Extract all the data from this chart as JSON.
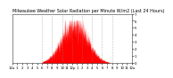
{
  "title": "Milwaukee Weather Solar Radiation per Minute W/m2 (Last 24 Hours)",
  "background_color": "#ffffff",
  "plot_bg_color": "#ffffff",
  "fill_color": "#ff0000",
  "line_color": "#ff0000",
  "grid_color": "#888888",
  "ylim": [
    0,
    700
  ],
  "yticks": [
    0,
    100,
    200,
    300,
    400,
    500,
    600,
    700
  ],
  "ytick_labels": [
    "0",
    "1",
    "2",
    "3",
    "4",
    "5",
    "6",
    "7"
  ],
  "num_points": 1440,
  "peak_hour": 12.5,
  "peak_value": 580,
  "start_hour": 6.0,
  "end_hour": 19.5,
  "sigma": 2.5,
  "x_gridlines": [
    6,
    8,
    10,
    12,
    14,
    16,
    18,
    20
  ],
  "x_tick_positions": [
    0,
    60,
    120,
    180,
    240,
    300,
    360,
    420,
    480,
    540,
    600,
    660,
    720,
    780,
    840,
    900,
    960,
    1020,
    1080,
    1140,
    1200,
    1260,
    1320,
    1380,
    1440
  ],
  "x_tick_labels": [
    "12a",
    "1",
    "2",
    "3",
    "4",
    "5",
    "6",
    "7",
    "8",
    "9",
    "10",
    "11",
    "12p",
    "1",
    "2",
    "3",
    "4",
    "5",
    "6",
    "7",
    "8",
    "9",
    "10",
    "11",
    "12a"
  ],
  "title_fontsize": 3.5,
  "tick_fontsize": 2.8,
  "noise_scale": 0.18,
  "noise_seed": 17
}
